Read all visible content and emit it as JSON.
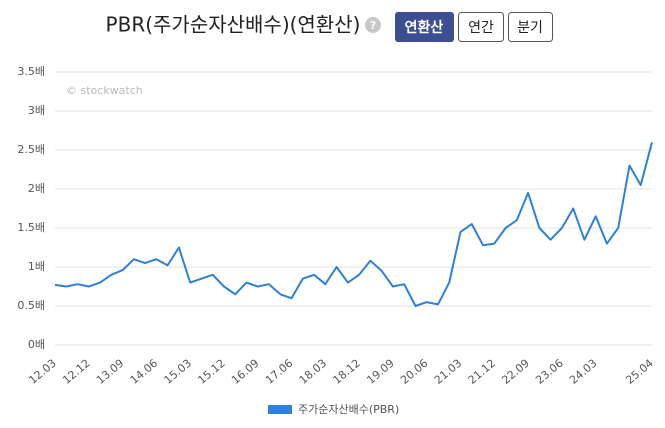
{
  "header": {
    "help_icon": "?",
    "buttons": [
      "연환산",
      "연간",
      "분기"
    ]
  },
  "chart_data": {
    "type": "line",
    "title": "PBR(주가순자산배수)(연환산)",
    "watermark": "© stockwatch",
    "categories": [
      "12.03",
      null,
      null,
      "12.12",
      null,
      null,
      "13.09",
      null,
      null,
      "14.06",
      null,
      null,
      "15.03",
      null,
      null,
      "15.12",
      null,
      null,
      "16.09",
      null,
      null,
      "17.06",
      null,
      null,
      "18.03",
      null,
      null,
      "18.12",
      null,
      null,
      "19.09",
      null,
      null,
      "20.06",
      null,
      null,
      "21.03",
      null,
      null,
      "21.12",
      null,
      null,
      "22.09",
      null,
      null,
      "23.06",
      null,
      null,
      "24.03",
      null,
      null,
      null,
      null,
      "25.04"
    ],
    "series": [
      {
        "name": "주가순자산배수(PBR)",
        "color": "#2f80d8",
        "values": [
          0.77,
          0.75,
          0.78,
          0.75,
          0.8,
          0.9,
          0.96,
          1.1,
          1.05,
          1.1,
          1.02,
          1.25,
          0.8,
          0.85,
          0.9,
          0.75,
          0.65,
          0.8,
          0.75,
          0.78,
          0.65,
          0.6,
          0.85,
          0.9,
          0.78,
          1.0,
          0.8,
          0.9,
          1.08,
          0.95,
          0.75,
          0.78,
          0.5,
          0.55,
          0.52,
          0.8,
          1.45,
          1.55,
          1.28,
          1.3,
          1.5,
          1.6,
          1.95,
          1.5,
          1.35,
          1.5,
          1.75,
          1.35,
          1.65,
          1.3,
          1.5,
          2.3,
          2.05,
          2.6
        ]
      }
    ],
    "ylim": [
      0,
      3.5
    ],
    "yticks": [
      {
        "value": 0,
        "label": "0배"
      },
      {
        "value": 0.5,
        "label": "0.5배"
      },
      {
        "value": 1,
        "label": "1배"
      },
      {
        "value": 1.5,
        "label": "1.5배"
      },
      {
        "value": 2,
        "label": "2배"
      },
      {
        "value": 2.5,
        "label": "2.5배"
      },
      {
        "value": 3,
        "label": "3배"
      },
      {
        "value": 3.5,
        "label": "3.5배"
      }
    ],
    "grid": true
  }
}
